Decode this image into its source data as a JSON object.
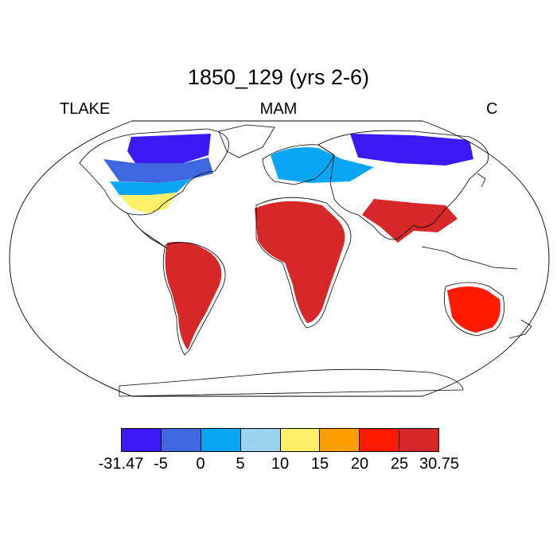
{
  "title": "1850_129 (yrs 2-6)",
  "subtitle_left": "TLAKE",
  "subtitle_center": "MAM",
  "subtitle_right": "C",
  "colorbar": {
    "colors": [
      "#3c19f5",
      "#3f67e0",
      "#09a6f5",
      "#9bd2ee",
      "#fff06a",
      "#ff9e00",
      "#ff1a00",
      "#d62828"
    ],
    "labels": [
      "-31.47",
      "-5",
      "0",
      "5",
      "10",
      "15",
      "20",
      "25",
      "30.75"
    ]
  },
  "map_fields": [
    {
      "region": "canada_arctic",
      "color_index": 0
    },
    {
      "region": "canada_south",
      "color_index": 1
    },
    {
      "region": "usa_north",
      "color_index": 2
    },
    {
      "region": "usa_south",
      "color_index": 4
    },
    {
      "region": "south_america",
      "color_index": 7
    },
    {
      "region": "africa",
      "color_index": 7
    },
    {
      "region": "siberia",
      "color_index": 0
    },
    {
      "region": "europe",
      "color_index": 2
    },
    {
      "region": "india_se_asia",
      "color_index": 7
    },
    {
      "region": "australia",
      "color_index": 6
    }
  ]
}
